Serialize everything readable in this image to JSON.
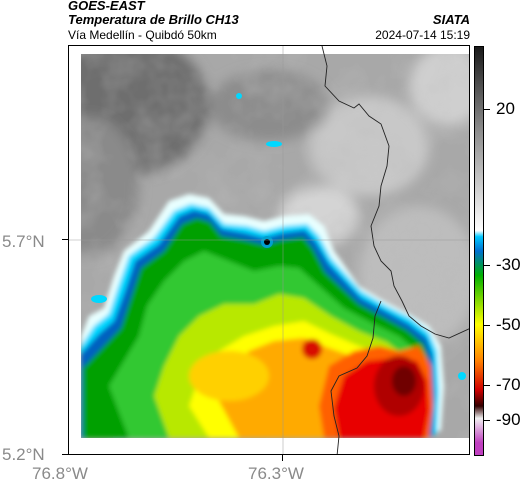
{
  "header": {
    "satellite": "GOES-EAST",
    "product": "Temperatura de Brillo CH13",
    "region": "Vía Medellín - Quibdó 50km",
    "agency": "SIATA",
    "datetime": "2024-07-14 15:19"
  },
  "axes": {
    "lat_labels": [
      "5.7°N",
      "5.2°N"
    ],
    "lon_labels": [
      "76.8°W",
      "76.3°W"
    ]
  },
  "colorbar": {
    "labels": [
      "20",
      "-30",
      "-50",
      "-70",
      "-90"
    ],
    "colors": [
      "#1a1a1a",
      "#ffffff",
      "#00c8ff",
      "#00b000",
      "#ffff00",
      "#ff7f00",
      "#d00000",
      "#330000",
      "#c040c0"
    ]
  }
}
